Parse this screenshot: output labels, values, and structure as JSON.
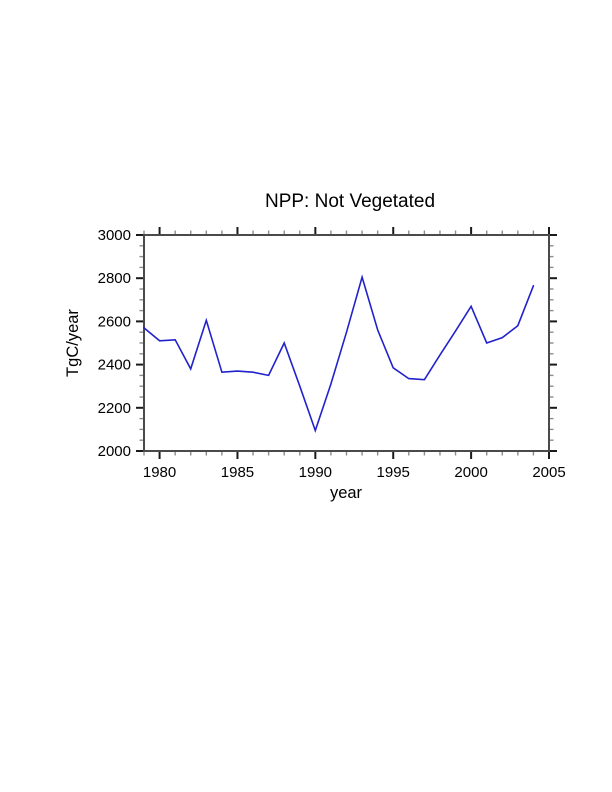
{
  "chart_data": {
    "type": "line",
    "title": "NPP: Not Vegetated",
    "xlabel": "year",
    "ylabel": "TgC/year",
    "x": [
      1979,
      1980,
      1981,
      1982,
      1983,
      1984,
      1985,
      1986,
      1987,
      1988,
      1989,
      1990,
      1991,
      1992,
      1993,
      1994,
      1995,
      1996,
      1997,
      1998,
      1999,
      2000,
      2001,
      2002,
      2003,
      2004
    ],
    "series": [
      {
        "name": "NPP Not Vegetated",
        "values": [
          2570,
          2510,
          2515,
          2380,
          2605,
          2365,
          2370,
          2365,
          2350,
          2500,
          2300,
          2095,
          2310,
          2550,
          2805,
          2560,
          2385,
          2335,
          2330,
          2445,
          2555,
          2670,
          2500,
          2525,
          2580,
          2765
        ],
        "color": "#2222cc"
      }
    ],
    "xlim": [
      1979,
      2005
    ],
    "ylim": [
      2000,
      3000
    ],
    "x_major_ticks": [
      1980,
      1985,
      1990,
      1995,
      2000,
      2005
    ],
    "x_minor_step": 1,
    "y_major_ticks": [
      2000,
      2200,
      2400,
      2600,
      2800,
      3000
    ],
    "y_minor_step": 50,
    "grid": false,
    "legend_position": "none",
    "axis_color": "#4a4a4a",
    "major_tick_color": "#1a1a1a",
    "minor_tick_color": "#8c8c8c",
    "line_color": "#2222cc",
    "text_color": "#000000",
    "background_color": "#ffffff"
  }
}
